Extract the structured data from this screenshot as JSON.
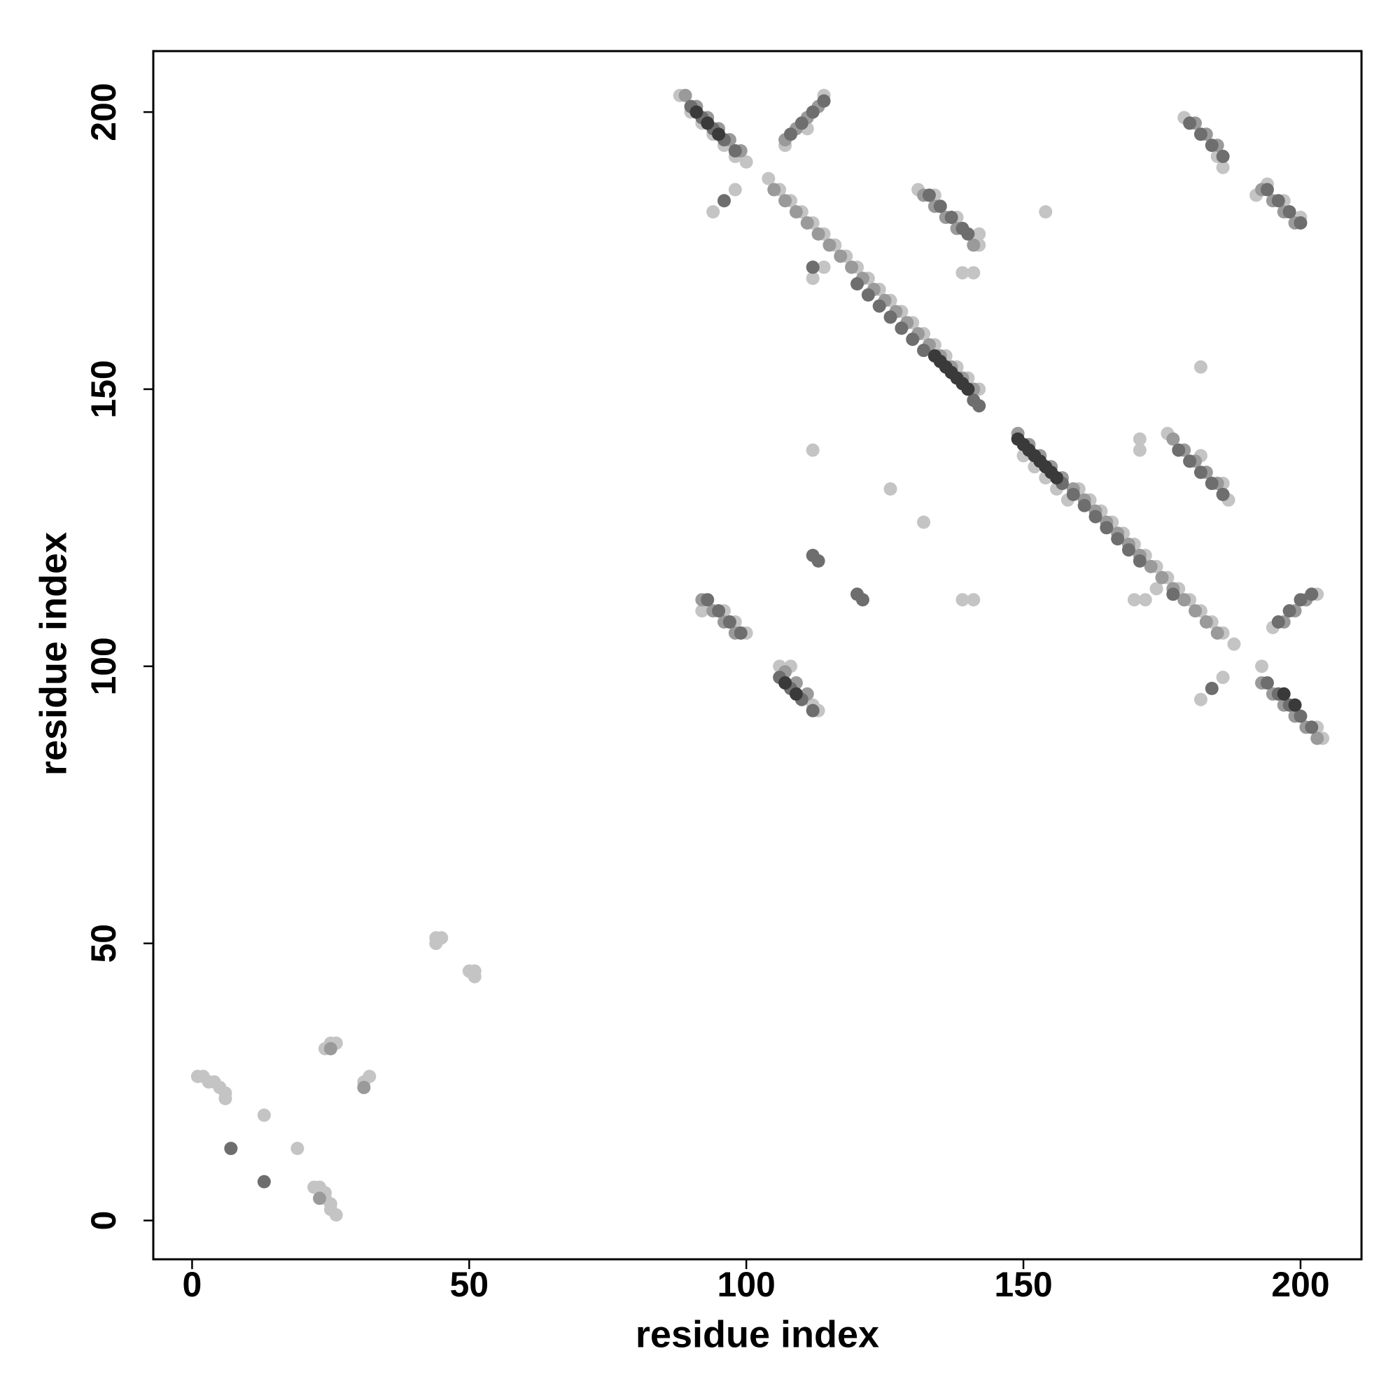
{
  "chart_data": {
    "type": "scatter",
    "xlabel": "residue index",
    "ylabel": "residue index",
    "xlim": [
      -7,
      211
    ],
    "ylim": [
      -7,
      211
    ],
    "xticks": [
      0,
      50,
      100,
      150,
      200
    ],
    "yticks": [
      0,
      50,
      100,
      150,
      200
    ],
    "series": [
      {
        "color": "#c4c4c4",
        "x": [
          104,
          106,
          108,
          110,
          112,
          114,
          116,
          118,
          120,
          122,
          124,
          126,
          128,
          130,
          132,
          134,
          136,
          138,
          140,
          142,
          150,
          152,
          154,
          156,
          158,
          160,
          162,
          164,
          166,
          168,
          170,
          172,
          174,
          176,
          178,
          180,
          182,
          184,
          186,
          188,
          88,
          90,
          92,
          94,
          96,
          98,
          100,
          131,
          142,
          134,
          138,
          142,
          179,
          186,
          185,
          192,
          194,
          197,
          200,
          176,
          187,
          186,
          182,
          92,
          100,
          96,
          98,
          113,
          112,
          108,
          106,
          204,
          193,
          203,
          203,
          195,
          107,
          114,
          111,
          94,
          98,
          112,
          126,
          132,
          139,
          141,
          139,
          141,
          154,
          182,
          171,
          171,
          170,
          172,
          182,
          186,
          112,
          114,
          174,
          19,
          13,
          1,
          2,
          3,
          4,
          5,
          6,
          6,
          22,
          23,
          24,
          24,
          25,
          25,
          26,
          24,
          25,
          26,
          31,
          32,
          44,
          45,
          44,
          50,
          51,
          51
        ],
        "y": [
          188,
          186,
          184,
          182,
          180,
          178,
          176,
          174,
          172,
          170,
          168,
          166,
          164,
          162,
          160,
          158,
          156,
          154,
          152,
          150,
          138,
          136,
          134,
          132,
          130,
          132,
          130,
          128,
          126,
          124,
          122,
          120,
          118,
          116,
          114,
          112,
          110,
          108,
          106,
          104,
          203,
          200,
          198,
          196,
          194,
          192,
          191,
          186,
          176,
          185,
          181,
          178,
          199,
          190,
          192,
          185,
          187,
          184,
          181,
          142,
          130,
          133,
          138,
          110,
          106,
          110,
          108,
          92,
          93,
          100,
          100,
          87,
          100,
          89,
          113,
          107,
          194,
          203,
          197,
          182,
          186,
          139,
          132,
          126,
          112,
          112,
          171,
          171,
          182,
          154,
          141,
          139,
          112,
          112,
          94,
          98,
          170,
          172,
          114,
          13,
          19,
          26,
          26,
          25,
          25,
          24,
          23,
          22,
          6,
          6,
          5,
          4,
          3,
          2,
          1,
          31,
          32,
          32,
          25,
          26,
          51,
          51,
          50,
          45,
          45,
          44
        ]
      },
      {
        "color": "#9a9a9a",
        "x": [
          105,
          107,
          109,
          111,
          113,
          115,
          117,
          119,
          121,
          123,
          125,
          127,
          129,
          131,
          133,
          135,
          137,
          139,
          141,
          149,
          151,
          153,
          155,
          157,
          159,
          161,
          163,
          165,
          167,
          169,
          171,
          173,
          175,
          177,
          179,
          181,
          183,
          185,
          89,
          91,
          93,
          95,
          97,
          99,
          132,
          134,
          136,
          138,
          141,
          181,
          183,
          185,
          193,
          195,
          197,
          199,
          177,
          179,
          181,
          183,
          185,
          92,
          94,
          96,
          98,
          107,
          109,
          111,
          193,
          195,
          197,
          199,
          201,
          203,
          197,
          199,
          201,
          107,
          109,
          111,
          113,
          31,
          23,
          25
        ],
        "y": [
          186,
          184,
          182,
          180,
          178,
          176,
          174,
          172,
          170,
          168,
          166,
          164,
          162,
          160,
          158,
          156,
          154,
          152,
          150,
          142,
          140,
          138,
          136,
          134,
          132,
          130,
          128,
          126,
          124,
          122,
          120,
          118,
          116,
          114,
          112,
          110,
          108,
          106,
          203,
          201,
          199,
          197,
          195,
          193,
          185,
          183,
          181,
          179,
          176,
          198,
          196,
          194,
          186,
          184,
          182,
          180,
          141,
          139,
          137,
          135,
          133,
          112,
          110,
          108,
          106,
          99,
          97,
          95,
          97,
          95,
          93,
          91,
          89,
          87,
          108,
          110,
          112,
          195,
          197,
          199,
          201,
          24,
          4,
          31
        ]
      },
      {
        "color": "#6e6e6e",
        "x": [
          120,
          122,
          124,
          126,
          128,
          130,
          132,
          141,
          142,
          157,
          159,
          161,
          163,
          165,
          167,
          169,
          171,
          90,
          92,
          94,
          96,
          98,
          133,
          135,
          137,
          139,
          140,
          180,
          182,
          184,
          186,
          194,
          196,
          198,
          200,
          178,
          180,
          182,
          184,
          186,
          93,
          95,
          97,
          99,
          106,
          108,
          110,
          112,
          194,
          196,
          198,
          200,
          202,
          196,
          198,
          200,
          202,
          108,
          110,
          112,
          114,
          96,
          184,
          113,
          112,
          120,
          121,
          7,
          13,
          112,
          177
        ],
        "y": [
          169,
          167,
          165,
          163,
          161,
          159,
          157,
          148,
          147,
          133,
          131,
          129,
          127,
          125,
          123,
          121,
          119,
          201,
          199,
          197,
          195,
          193,
          185,
          183,
          181,
          179,
          178,
          198,
          196,
          194,
          192,
          186,
          184,
          182,
          180,
          139,
          137,
          135,
          133,
          131,
          112,
          110,
          108,
          106,
          98,
          96,
          94,
          92,
          97,
          95,
          93,
          91,
          89,
          108,
          110,
          112,
          113,
          196,
          198,
          200,
          202,
          184,
          96,
          119,
          120,
          113,
          112,
          13,
          7,
          172,
          113
        ]
      },
      {
        "color": "#3a3a3a",
        "x": [
          149,
          150,
          151,
          152,
          153,
          154,
          155,
          156,
          134,
          135,
          136,
          137,
          138,
          139,
          140,
          91,
          93,
          95,
          197,
          199,
          107,
          109
        ],
        "y": [
          141,
          140,
          139,
          138,
          137,
          136,
          135,
          134,
          156,
          155,
          154,
          153,
          152,
          151,
          150,
          200,
          198,
          196,
          95,
          93,
          97,
          95
        ]
      }
    ]
  }
}
